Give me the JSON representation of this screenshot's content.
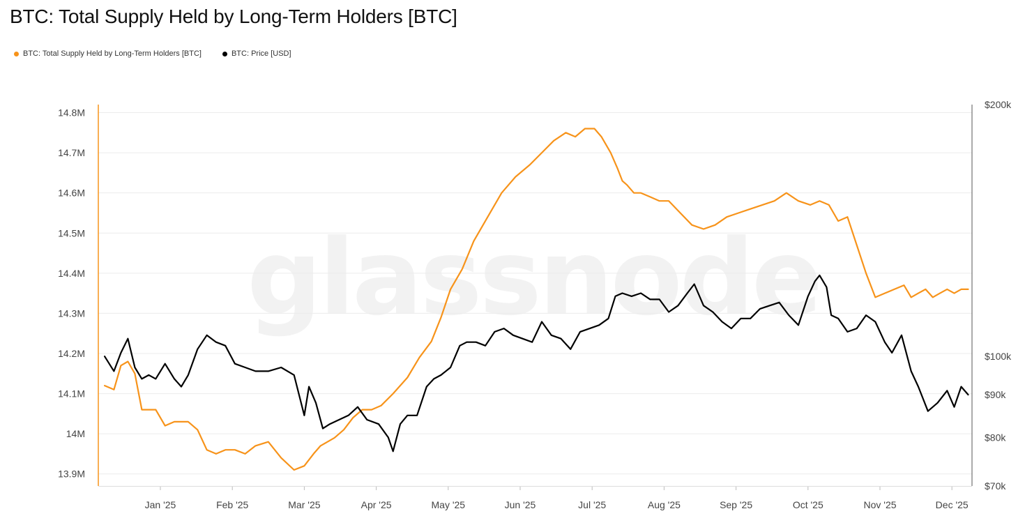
{
  "title": "BTC: Total Supply Held by Long-Term Holders [BTC]",
  "watermark": "glassnode",
  "colors": {
    "supply": "#f7931a",
    "price": "#000000",
    "grid": "#ececec",
    "axis": "#bbbbbb"
  },
  "legend": [
    {
      "label": "BTC: Total Supply Held by Long-Term Holders [BTC]",
      "color": "#f7931a"
    },
    {
      "label": "BTC: Price [USD]",
      "color": "#000000"
    }
  ],
  "chart_data": {
    "type": "line",
    "title": "BTC: Total Supply Held by Long-Term Holders [BTC]",
    "xlabel": "",
    "ylabel": "",
    "grid": true,
    "legend_position": "top-left",
    "x_ticks": [
      "Jan '25",
      "Feb '25",
      "Mar '25",
      "Apr '25",
      "May '25",
      "Jun '25",
      "Jul '25",
      "Aug '25",
      "Sep '25",
      "Oct '25",
      "Nov '25",
      "Dec '25"
    ],
    "y_left": {
      "range": [
        13870000,
        14820000
      ],
      "ticks": [
        13900000,
        14000000,
        14100000,
        14200000,
        14300000,
        14400000,
        14500000,
        14600000,
        14700000,
        14800000
      ],
      "tick_labels": [
        "13.9M",
        "14M",
        "14.1M",
        "14.2M",
        "14.3M",
        "14.4M",
        "14.5M",
        "14.6M",
        "14.7M",
        "14.8M"
      ]
    },
    "y_right": {
      "scale": "log",
      "range": [
        70000,
        200000
      ],
      "ticks": [
        70000,
        80000,
        90000,
        100000,
        200000
      ],
      "tick_labels": [
        "$70k",
        "$80k",
        "$90k",
        "$100k",
        "$200k"
      ]
    },
    "series": [
      {
        "name": "BTC: Total Supply Held by Long-Term Holders [BTC]",
        "axis": "left",
        "x": [
          "2024-12-08",
          "2024-12-12",
          "2024-12-15",
          "2024-12-18",
          "2024-12-21",
          "2024-12-24",
          "2024-12-27",
          "2024-12-30",
          "2025-01-03",
          "2025-01-07",
          "2025-01-10",
          "2025-01-13",
          "2025-01-17",
          "2025-01-21",
          "2025-01-25",
          "2025-01-29",
          "2025-02-02",
          "2025-02-06",
          "2025-02-10",
          "2025-02-15",
          "2025-02-20",
          "2025-02-25",
          "2025-03-01",
          "2025-03-05",
          "2025-03-08",
          "2025-03-11",
          "2025-03-14",
          "2025-03-18",
          "2025-03-22",
          "2025-03-26",
          "2025-03-30",
          "2025-04-03",
          "2025-04-08",
          "2025-04-14",
          "2025-04-19",
          "2025-04-24",
          "2025-04-28",
          "2025-05-02",
          "2025-05-07",
          "2025-05-12",
          "2025-05-18",
          "2025-05-24",
          "2025-05-30",
          "2025-06-05",
          "2025-06-10",
          "2025-06-15",
          "2025-06-20",
          "2025-06-24",
          "2025-06-28",
          "2025-07-02",
          "2025-07-05",
          "2025-07-09",
          "2025-07-12",
          "2025-07-14",
          "2025-07-16",
          "2025-07-19",
          "2025-07-22",
          "2025-07-26",
          "2025-07-30",
          "2025-08-03",
          "2025-08-08",
          "2025-08-13",
          "2025-08-18",
          "2025-08-23",
          "2025-08-28",
          "2025-09-02",
          "2025-09-07",
          "2025-09-12",
          "2025-09-17",
          "2025-09-22",
          "2025-09-27",
          "2025-10-02",
          "2025-10-06",
          "2025-10-10",
          "2025-10-14",
          "2025-10-18",
          "2025-10-22",
          "2025-10-26",
          "2025-10-30",
          "2025-11-03",
          "2025-11-07",
          "2025-11-11",
          "2025-11-14",
          "2025-11-17",
          "2025-11-20",
          "2025-11-23",
          "2025-11-26",
          "2025-11-29",
          "2025-12-02",
          "2025-12-05",
          "2025-12-08"
        ],
        "values": [
          14120000,
          14110000,
          14170000,
          14180000,
          14150000,
          14060000,
          14060000,
          14060000,
          14020000,
          14030000,
          14030000,
          14030000,
          14010000,
          13960000,
          13950000,
          13960000,
          13960000,
          13950000,
          13970000,
          13980000,
          13940000,
          13910000,
          13920000,
          13950000,
          13970000,
          13980000,
          13990000,
          14010000,
          14040000,
          14060000,
          14060000,
          14070000,
          14100000,
          14140000,
          14190000,
          14230000,
          14290000,
          14360000,
          14410000,
          14480000,
          14540000,
          14600000,
          14640000,
          14670000,
          14700000,
          14730000,
          14750000,
          14740000,
          14760000,
          14760000,
          14740000,
          14700000,
          14660000,
          14630000,
          14620000,
          14600000,
          14600000,
          14590000,
          14580000,
          14580000,
          14550000,
          14520000,
          14510000,
          14520000,
          14540000,
          14550000,
          14560000,
          14570000,
          14580000,
          14600000,
          14580000,
          14570000,
          14580000,
          14570000,
          14530000,
          14540000,
          14470000,
          14400000,
          14340000,
          14350000,
          14360000,
          14370000,
          14340000,
          14350000,
          14360000,
          14340000,
          14350000,
          14360000,
          14350000,
          14360000,
          14360000
        ]
      },
      {
        "name": "BTC: Price [USD]",
        "axis": "right",
        "x": [
          "2024-12-08",
          "2024-12-12",
          "2024-12-15",
          "2024-12-18",
          "2024-12-21",
          "2024-12-24",
          "2024-12-27",
          "2024-12-30",
          "2025-01-03",
          "2025-01-07",
          "2025-01-10",
          "2025-01-13",
          "2025-01-17",
          "2025-01-21",
          "2025-01-25",
          "2025-01-29",
          "2025-02-02",
          "2025-02-06",
          "2025-02-10",
          "2025-02-15",
          "2025-02-20",
          "2025-02-25",
          "2025-03-01",
          "2025-03-03",
          "2025-03-06",
          "2025-03-09",
          "2025-03-12",
          "2025-03-16",
          "2025-03-20",
          "2025-03-24",
          "2025-03-28",
          "2025-04-02",
          "2025-04-06",
          "2025-04-08",
          "2025-04-11",
          "2025-04-14",
          "2025-04-18",
          "2025-04-22",
          "2025-04-25",
          "2025-04-28",
          "2025-05-02",
          "2025-05-06",
          "2025-05-09",
          "2025-05-13",
          "2025-05-17",
          "2025-05-21",
          "2025-05-25",
          "2025-05-29",
          "2025-06-02",
          "2025-06-06",
          "2025-06-10",
          "2025-06-14",
          "2025-06-18",
          "2025-06-22",
          "2025-06-26",
          "2025-06-30",
          "2025-07-04",
          "2025-07-08",
          "2025-07-11",
          "2025-07-14",
          "2025-07-18",
          "2025-07-22",
          "2025-07-26",
          "2025-07-30",
          "2025-08-03",
          "2025-08-07",
          "2025-08-11",
          "2025-08-14",
          "2025-08-18",
          "2025-08-22",
          "2025-08-26",
          "2025-08-30",
          "2025-09-03",
          "2025-09-07",
          "2025-09-11",
          "2025-09-15",
          "2025-09-19",
          "2025-09-23",
          "2025-09-27",
          "2025-10-01",
          "2025-10-04",
          "2025-10-06",
          "2025-10-09",
          "2025-10-11",
          "2025-10-14",
          "2025-10-18",
          "2025-10-22",
          "2025-10-26",
          "2025-10-30",
          "2025-11-03",
          "2025-11-06",
          "2025-11-10",
          "2025-11-14",
          "2025-11-17",
          "2025-11-21",
          "2025-11-25",
          "2025-11-29",
          "2025-12-02",
          "2025-12-05",
          "2025-12-08"
        ],
        "values": [
          100000,
          96000,
          101000,
          105000,
          97000,
          94000,
          95000,
          94000,
          98000,
          94000,
          92000,
          95000,
          102000,
          106000,
          104000,
          103000,
          98000,
          97000,
          96000,
          96000,
          97000,
          95000,
          85000,
          92000,
          88000,
          82000,
          83000,
          84000,
          85000,
          87000,
          84000,
          83000,
          80000,
          77000,
          83000,
          85000,
          85000,
          92000,
          94000,
          95000,
          97000,
          103000,
          104000,
          104000,
          103000,
          107000,
          108000,
          106000,
          105000,
          104000,
          110000,
          106000,
          105000,
          102000,
          107000,
          108000,
          109000,
          111000,
          118000,
          119000,
          118000,
          119000,
          117000,
          117000,
          113000,
          115000,
          119000,
          122000,
          115000,
          113000,
          110000,
          108000,
          111000,
          111000,
          114000,
          115000,
          116000,
          112000,
          109000,
          118000,
          123000,
          125000,
          121000,
          112000,
          111000,
          107000,
          108000,
          112000,
          110000,
          104000,
          101000,
          106000,
          96000,
          92000,
          86000,
          88000,
          91000,
          87000,
          92000,
          90000
        ]
      }
    ]
  }
}
